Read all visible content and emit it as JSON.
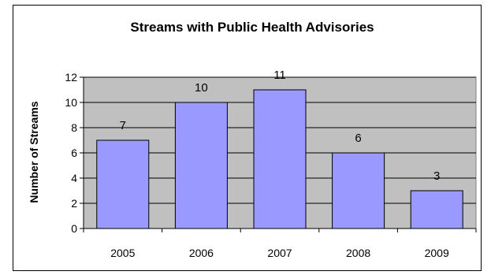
{
  "chart_data": {
    "type": "bar",
    "title": "Streams with Public Health Advisories",
    "xlabel": "",
    "ylabel": "Number of Streams",
    "categories": [
      "2005",
      "2006",
      "2007",
      "2008",
      "2009"
    ],
    "values": [
      7,
      10,
      11,
      6,
      3
    ],
    "ylim": [
      0,
      12
    ],
    "yticks": [
      0,
      2,
      4,
      6,
      8,
      10,
      12
    ],
    "grid": true,
    "legend": "none",
    "colors": {
      "bar_fill": "#9999ff",
      "bar_stroke": "#000000",
      "plot_background": "#c0c0c0",
      "gridline": "#000000"
    }
  }
}
